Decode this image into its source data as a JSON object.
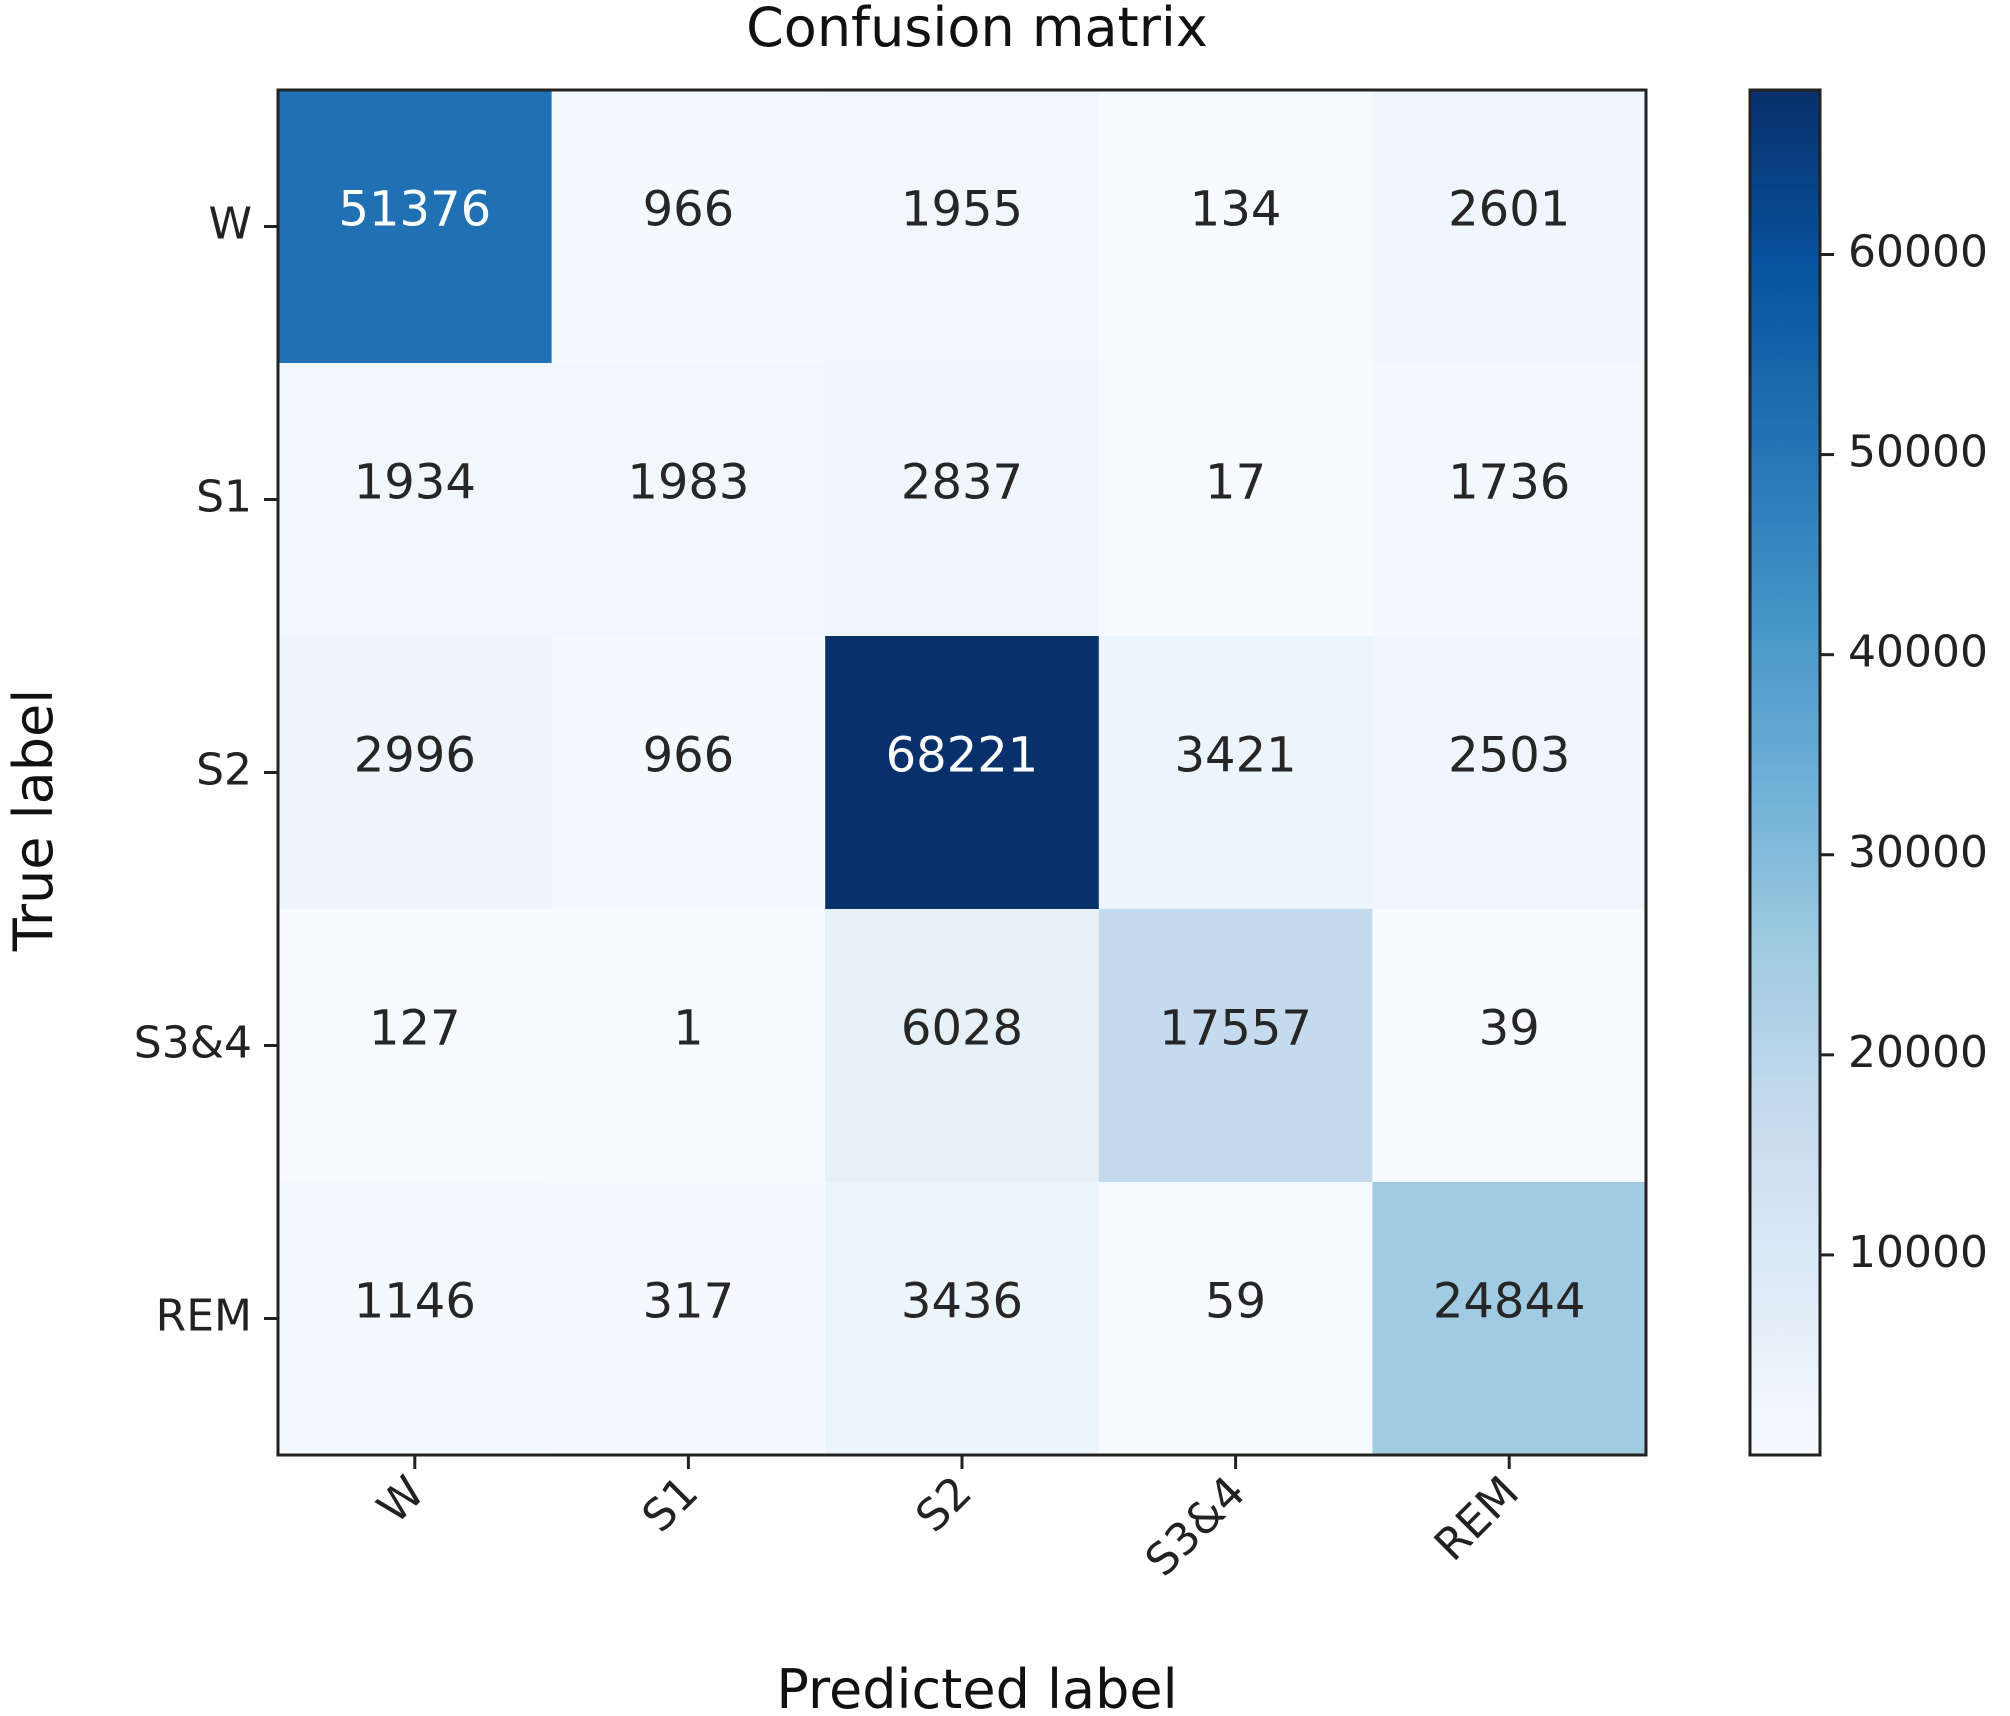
{
  "chart_data": {
    "type": "heatmap",
    "title": "Confusion matrix",
    "xlabel": "Predicted label",
    "ylabel": "True label",
    "x_categories": [
      "W",
      "S1",
      "S2",
      "S3&4",
      "REM"
    ],
    "y_categories": [
      "W",
      "S1",
      "S2",
      "S3&4",
      "REM"
    ],
    "values": [
      [
        51376,
        966,
        1955,
        134,
        2601
      ],
      [
        1934,
        1983,
        2837,
        17,
        1736
      ],
      [
        2996,
        966,
        68221,
        3421,
        2503
      ],
      [
        127,
        1,
        6028,
        17557,
        39
      ],
      [
        1146,
        317,
        3436,
        59,
        24844
      ]
    ],
    "colorbar": {
      "ticks": [
        10000,
        20000,
        30000,
        40000,
        50000,
        60000
      ],
      "tick_labels": [
        "10000",
        "20000",
        "30000",
        "40000",
        "50000",
        "60000"
      ],
      "range": [
        1,
        68221
      ]
    },
    "colormap": [
      "#f7fbff",
      "#deebf7",
      "#c6dbef",
      "#9ecae1",
      "#6baed6",
      "#4292c6",
      "#2171b5",
      "#08519c",
      "#08306b"
    ],
    "text_colors": {
      "dark": "#262626",
      "light": "#ffffff"
    }
  }
}
